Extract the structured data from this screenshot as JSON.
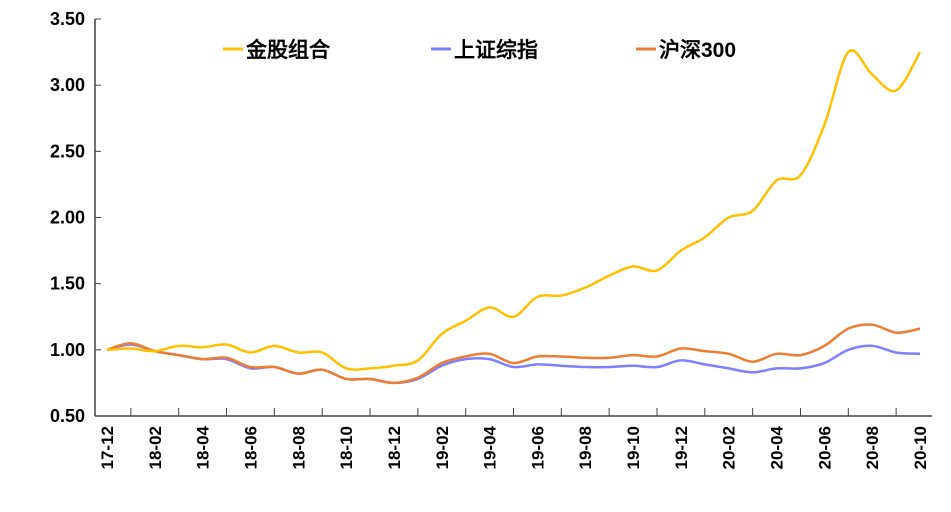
{
  "chart_data": {
    "type": "line",
    "title": "",
    "xlabel": "",
    "ylabel": "",
    "ylim": [
      0.5,
      3.5
    ],
    "yticks": [
      "0.50",
      "1.00",
      "1.50",
      "2.00",
      "2.50",
      "3.00",
      "3.50"
    ],
    "grid": false,
    "legend_position": "top",
    "x": [
      "17-12",
      "18-01",
      "18-02",
      "18-03",
      "18-04",
      "18-05",
      "18-06",
      "18-07",
      "18-08",
      "18-09",
      "18-10",
      "18-11",
      "18-12",
      "19-01",
      "19-02",
      "19-03",
      "19-04",
      "19-05",
      "19-06",
      "19-07",
      "19-08",
      "19-09",
      "19-10",
      "19-11",
      "19-12",
      "20-01",
      "20-02",
      "20-03",
      "20-04",
      "20-05",
      "20-06",
      "20-07",
      "20-08",
      "20-09",
      "20-10"
    ],
    "xtick_labels": [
      "17-12",
      "18-02",
      "18-04",
      "18-06",
      "18-08",
      "18-10",
      "18-12",
      "19-02",
      "19-04",
      "19-06",
      "19-08",
      "19-10",
      "19-12",
      "20-02",
      "20-04",
      "20-06",
      "20-08",
      "20-10"
    ],
    "series": [
      {
        "name": "金股组合",
        "color": "#FFC000",
        "values": [
          1.0,
          1.01,
          0.99,
          1.03,
          1.02,
          1.04,
          0.98,
          1.03,
          0.98,
          0.98,
          0.86,
          0.86,
          0.88,
          0.92,
          1.12,
          1.22,
          1.32,
          1.25,
          1.4,
          1.41,
          1.47,
          1.56,
          1.63,
          1.6,
          1.75,
          1.85,
          2.0,
          2.05,
          2.28,
          2.32,
          2.7,
          3.25,
          3.08,
          2.96,
          3.25
        ]
      },
      {
        "name": "上证综指",
        "color": "#7F7FFF",
        "values": [
          1.0,
          1.04,
          0.99,
          0.96,
          0.93,
          0.93,
          0.86,
          0.87,
          0.82,
          0.85,
          0.78,
          0.78,
          0.75,
          0.78,
          0.88,
          0.93,
          0.93,
          0.87,
          0.89,
          0.88,
          0.87,
          0.87,
          0.88,
          0.87,
          0.92,
          0.89,
          0.86,
          0.83,
          0.86,
          0.86,
          0.9,
          1.0,
          1.03,
          0.98,
          0.97
        ]
      },
      {
        "name": "沪深300",
        "color": "#ED7D31",
        "values": [
          1.0,
          1.05,
          0.99,
          0.96,
          0.93,
          0.94,
          0.87,
          0.87,
          0.82,
          0.85,
          0.78,
          0.78,
          0.75,
          0.79,
          0.9,
          0.95,
          0.97,
          0.9,
          0.95,
          0.95,
          0.94,
          0.94,
          0.96,
          0.95,
          1.01,
          0.99,
          0.97,
          0.91,
          0.97,
          0.96,
          1.03,
          1.16,
          1.19,
          1.13,
          1.16
        ]
      }
    ]
  }
}
